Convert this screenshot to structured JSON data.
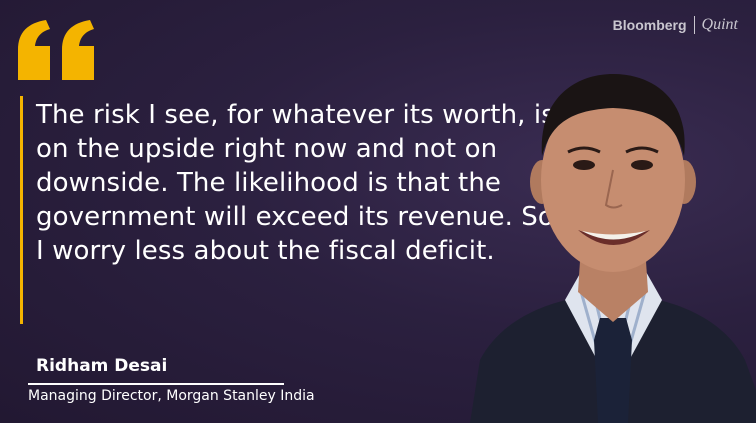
{
  "quote": {
    "text": "The risk I see, for whatever its worth, is on the upside right now and not on downside. The likelihood is that the government will exceed its revenue. So I worry less about the fiscal deficit."
  },
  "speaker": {
    "name": "Ridham Desai",
    "title": "Managing Director, Morgan Stanley India"
  },
  "brand": {
    "logo_primary": "Bloomberg",
    "logo_secondary": "Quint"
  },
  "colors": {
    "background": "#2a1f3d",
    "accent": "#f4b400",
    "text": "#ffffff"
  },
  "icons": {
    "quote_mark": "double-quote-icon"
  }
}
